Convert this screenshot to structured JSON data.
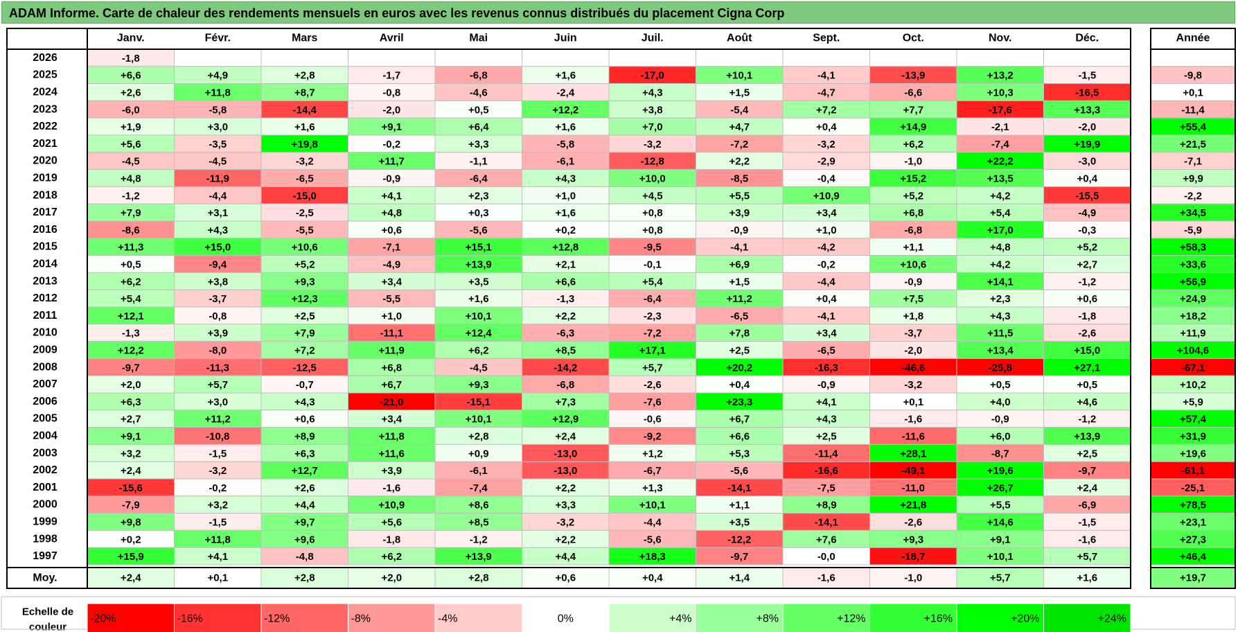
{
  "title": "ADAM Informe. Carte de chaleur des rendements mensuels en euros avec les revenus connus distribués du placement Cigna Corp",
  "chart_data": {
    "type": "heatmap",
    "columns": [
      "Janv.",
      "Févr.",
      "Mars",
      "Avril",
      "Mai",
      "Juin",
      "Juil.",
      "Août",
      "Sept.",
      "Oct.",
      "Nov.",
      "Déc."
    ],
    "annual_header": "Année",
    "rows": [
      {
        "year": "2026",
        "values": [
          "-1,8",
          "",
          "",
          "",
          "",
          "",
          "",
          "",
          "",
          "",
          "",
          ""
        ],
        "annual": ""
      },
      {
        "year": "2025",
        "values": [
          "+6,6",
          "+4,9",
          "+2,8",
          "-1,7",
          "-6,8",
          "+1,6",
          "-17,0",
          "+10,1",
          "-4,1",
          "-13,9",
          "+13,2",
          "-1,5"
        ],
        "annual": "-9,8"
      },
      {
        "year": "2024",
        "values": [
          "+2,6",
          "+11,8",
          "+8,7",
          "-0,8",
          "-4,6",
          "-2,4",
          "+4,3",
          "+1,5",
          "-4,7",
          "-6,6",
          "+10,3",
          "-16,5"
        ],
        "annual": "+0,1"
      },
      {
        "year": "2023",
        "values": [
          "-6,0",
          "-5,8",
          "-14,4",
          "-2,0",
          "+0,5",
          "+12,2",
          "+3,8",
          "-5,4",
          "+7,2",
          "+7,7",
          "-17,6",
          "+13,3"
        ],
        "annual": "-11,4"
      },
      {
        "year": "2022",
        "values": [
          "+1,9",
          "+3,0",
          "+1,6",
          "+9,1",
          "+6,4",
          "+1,6",
          "+7,0",
          "+4,7",
          "+0,4",
          "+14,9",
          "-2,1",
          "-2,0"
        ],
        "annual": "+55,4"
      },
      {
        "year": "2021",
        "values": [
          "+5,6",
          "-3,5",
          "+19,8",
          "-0,2",
          "+3,3",
          "-5,8",
          "-3,2",
          "-7,2",
          "-3,2",
          "+6,2",
          "-7,4",
          "+19,9"
        ],
        "annual": "+21,5"
      },
      {
        "year": "2020",
        "values": [
          "-4,5",
          "-4,5",
          "-3,2",
          "+11,7",
          "-1,1",
          "-6,1",
          "-12,8",
          "+2,2",
          "-2,9",
          "-1,0",
          "+22,2",
          "-3,0"
        ],
        "annual": "-7,1"
      },
      {
        "year": "2019",
        "values": [
          "+4,8",
          "-11,9",
          "-6,5",
          "-0,9",
          "-6,4",
          "+4,3",
          "+10,0",
          "-8,5",
          "-0,4",
          "+15,2",
          "+13,5",
          "+0,4"
        ],
        "annual": "+9,9"
      },
      {
        "year": "2018",
        "values": [
          "-1,2",
          "-4,4",
          "-15,0",
          "+4,1",
          "+2,3",
          "+1,0",
          "+4,5",
          "+5,5",
          "+10,9",
          "+5,2",
          "+4,2",
          "-15,5"
        ],
        "annual": "-2,2"
      },
      {
        "year": "2017",
        "values": [
          "+7,9",
          "+3,1",
          "-2,5",
          "+4,8",
          "+0,3",
          "+1,6",
          "+0,8",
          "+3,9",
          "+3,4",
          "+6,8",
          "+5,4",
          "-4,9"
        ],
        "annual": "+34,5"
      },
      {
        "year": "2016",
        "values": [
          "-8,6",
          "+4,3",
          "-5,5",
          "+0,6",
          "-5,6",
          "+0,2",
          "+0,8",
          "-0,9",
          "+1,0",
          "-6,8",
          "+17,0",
          "-0,3"
        ],
        "annual": "-5,9"
      },
      {
        "year": "2015",
        "values": [
          "+11,3",
          "+15,0",
          "+10,6",
          "-7,1",
          "+15,1",
          "+12,8",
          "-9,5",
          "-4,1",
          "-4,2",
          "+1,1",
          "+4,8",
          "+5,2"
        ],
        "annual": "+58,3"
      },
      {
        "year": "2014",
        "values": [
          "+0,5",
          "-9,4",
          "+5,2",
          "-4,9",
          "+13,9",
          "+2,1",
          "-0,1",
          "+6,9",
          "-0,2",
          "+10,6",
          "+4,2",
          "+2,7"
        ],
        "annual": "+33,6"
      },
      {
        "year": "2013",
        "values": [
          "+6,2",
          "+3,8",
          "+9,3",
          "+3,4",
          "+3,5",
          "+6,6",
          "+5,4",
          "+1,5",
          "-4,4",
          "-0,9",
          "+14,1",
          "-1,2"
        ],
        "annual": "+56,9"
      },
      {
        "year": "2012",
        "values": [
          "+5,4",
          "-3,7",
          "+12,3",
          "-5,5",
          "+1,6",
          "-1,3",
          "-6,4",
          "+11,2",
          "+0,4",
          "+7,5",
          "+2,3",
          "+0,6"
        ],
        "annual": "+24,9"
      },
      {
        "year": "2011",
        "values": [
          "+12,1",
          "-0,8",
          "+2,5",
          "+1,0",
          "+10,1",
          "+2,2",
          "-2,3",
          "-6,5",
          "-4,1",
          "+1,8",
          "+4,3",
          "-1,8"
        ],
        "annual": "+18,2"
      },
      {
        "year": "2010",
        "values": [
          "-1,3",
          "+3,9",
          "+7,9",
          "-11,1",
          "+12,4",
          "-6,3",
          "-7,2",
          "+7,8",
          "+3,4",
          "-3,7",
          "+11,5",
          "-2,6"
        ],
        "annual": "+11,9"
      },
      {
        "year": "2009",
        "values": [
          "+12,2",
          "-8,0",
          "+7,2",
          "+11,9",
          "+6,2",
          "+8,5",
          "+17,1",
          "+2,5",
          "-6,5",
          "-2,0",
          "+13,4",
          "+15,0"
        ],
        "annual": "+104,6"
      },
      {
        "year": "2008",
        "values": [
          "-9,7",
          "-11,3",
          "-12,5",
          "+6,8",
          "-4,5",
          "-14,2",
          "+5,7",
          "+20,2",
          "-16,3",
          "-46,6",
          "-25,8",
          "+27,1"
        ],
        "annual": "-67,1"
      },
      {
        "year": "2007",
        "values": [
          "+2,0",
          "+5,7",
          "-0,7",
          "+6,7",
          "+9,3",
          "-6,8",
          "-2,6",
          "+0,4",
          "-0,9",
          "-3,2",
          "+0,5",
          "+0,5"
        ],
        "annual": "+10,2"
      },
      {
        "year": "2006",
        "values": [
          "+6,3",
          "+3,0",
          "+4,3",
          "-21,0",
          "-15,1",
          "+7,3",
          "-7,6",
          "+23,3",
          "+4,1",
          "+0,1",
          "+4,0",
          "+4,6"
        ],
        "annual": "+5,9"
      },
      {
        "year": "2005",
        "values": [
          "+2,7",
          "+11,2",
          "+0,6",
          "+3,4",
          "+10,1",
          "+12,9",
          "-0,6",
          "+6,7",
          "+4,3",
          "-1,6",
          "-0,9",
          "-1,2"
        ],
        "annual": "+57,4"
      },
      {
        "year": "2004",
        "values": [
          "+9,1",
          "-10,8",
          "+8,9",
          "+11,8",
          "+2,8",
          "+2,4",
          "-9,2",
          "+6,6",
          "+2,5",
          "-11,6",
          "+6,0",
          "+13,9"
        ],
        "annual": "+31,9"
      },
      {
        "year": "2003",
        "values": [
          "+3,2",
          "-1,5",
          "+6,3",
          "+11,6",
          "+0,9",
          "-13,0",
          "+1,2",
          "+5,3",
          "-11,4",
          "+28,1",
          "-8,7",
          "+2,5"
        ],
        "annual": "+19,6"
      },
      {
        "year": "2002",
        "values": [
          "+2,4",
          "-3,2",
          "+12,7",
          "+3,9",
          "-6,1",
          "-13,0",
          "-6,7",
          "-5,6",
          "-16,6",
          "-49,1",
          "+19,6",
          "-9,7"
        ],
        "annual": "-61,1"
      },
      {
        "year": "2001",
        "values": [
          "-15,6",
          "-0,2",
          "+2,6",
          "-1,6",
          "-7,4",
          "+2,2",
          "+1,3",
          "-14,1",
          "-7,5",
          "-11,0",
          "+26,7",
          "+2,4"
        ],
        "annual": "-25,1"
      },
      {
        "year": "2000",
        "values": [
          "-7,9",
          "+3,2",
          "+4,4",
          "+10,9",
          "+8,6",
          "+3,3",
          "+10,1",
          "+1,1",
          "+8,9",
          "+21,8",
          "+5,5",
          "-6,9"
        ],
        "annual": "+78,5"
      },
      {
        "year": "1999",
        "values": [
          "+9,8",
          "-1,5",
          "+9,7",
          "+5,6",
          "+8,5",
          "-3,2",
          "-4,4",
          "+3,5",
          "-14,1",
          "-2,6",
          "+14,6",
          "-1,5"
        ],
        "annual": "+23,1"
      },
      {
        "year": "1998",
        "values": [
          "+0,2",
          "+11,8",
          "+9,6",
          "-1,8",
          "-1,2",
          "+2,2",
          "-5,6",
          "-12,2",
          "+7,6",
          "+9,3",
          "+9,1",
          "-1,6"
        ],
        "annual": "+27,3"
      },
      {
        "year": "1997",
        "values": [
          "+15,9",
          "+4,1",
          "-4,8",
          "+6,2",
          "+13,9",
          "+4,4",
          "+18,3",
          "-9,7",
          "-0,0",
          "-18,7",
          "+10,1",
          "+5,7"
        ],
        "annual": "+46,4"
      }
    ],
    "average": {
      "label": "Moy.",
      "values": [
        "+2,4",
        "+0,1",
        "+2,8",
        "+2,0",
        "+2,8",
        "+0,6",
        "+0,4",
        "+1,4",
        "-1,6",
        "-1,0",
        "+5,7",
        "+1,6"
      ],
      "annual": "+19,7"
    },
    "scale": {
      "label_lines": [
        "Echelle de",
        "couleur"
      ],
      "steps": [
        {
          "label": "-20%",
          "value": -20,
          "color": "#ff0000"
        },
        {
          "label": "-16%",
          "value": -16,
          "color": "#ff3333"
        },
        {
          "label": "-12%",
          "value": -12,
          "color": "#ff6666"
        },
        {
          "label": "-8%",
          "value": -8,
          "color": "#ff9999"
        },
        {
          "label": "-4%",
          "value": -4,
          "color": "#ffcccc"
        },
        {
          "label": "0%",
          "value": 0,
          "color": "#ffffff"
        },
        {
          "label": "+4%",
          "value": 4,
          "color": "#ccffcc"
        },
        {
          "label": "+8%",
          "value": 8,
          "color": "#99ff99"
        },
        {
          "label": "+12%",
          "value": 12,
          "color": "#66ff66"
        },
        {
          "label": "+16%",
          "value": 16,
          "color": "#33ff33"
        },
        {
          "label": "+20%",
          "value": 20,
          "color": "#00ff00"
        },
        {
          "label": "+24%",
          "value": 24,
          "color": "#00e600"
        }
      ]
    }
  },
  "colors": {
    "title_bg": "#7dc97d",
    "grid": "#bfbfbf",
    "border": "#000000"
  }
}
